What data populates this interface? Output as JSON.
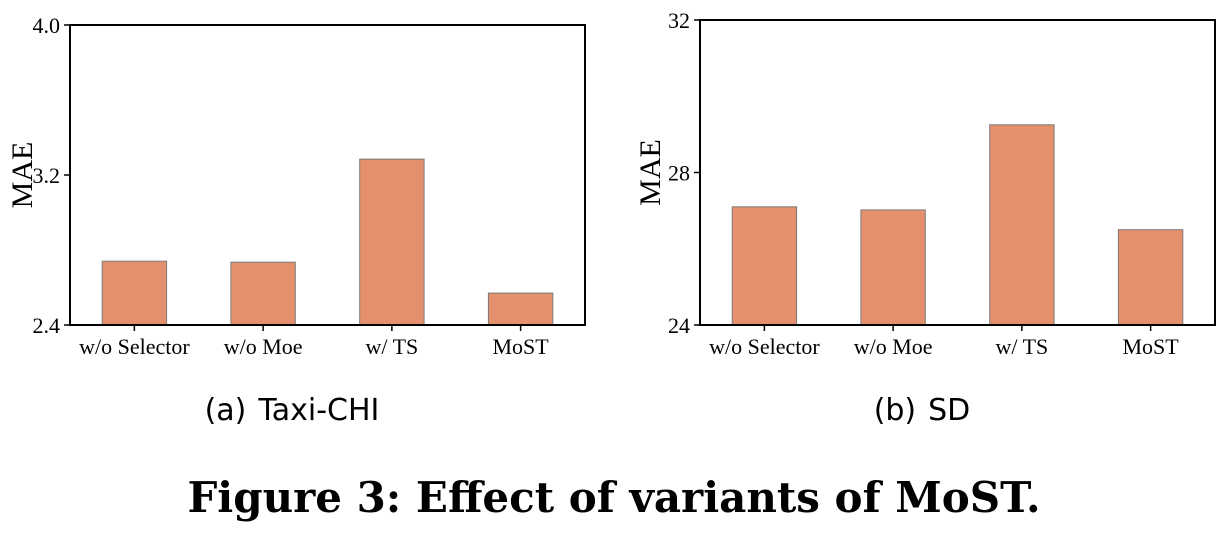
{
  "chart_data": [
    {
      "type": "bar",
      "subcaption_label": "(a)",
      "subcaption_name": "Taxi-CHI",
      "categories": [
        "w/o Selector",
        "w/o Moe",
        "w/ TS",
        "MoST"
      ],
      "values": [
        2.74,
        2.735,
        3.285,
        2.57
      ],
      "ylabel": "MAE",
      "ylim": [
        2.4,
        4.0
      ],
      "yticks": [
        "2.4",
        "3.2",
        "4.0"
      ],
      "grid": false,
      "bar_color": "#e5906c",
      "bar_edge_color": "#7a7a7a"
    },
    {
      "type": "bar",
      "subcaption_label": "(b)",
      "subcaption_name": "SD",
      "categories": [
        "w/o Selector",
        "w/o Moe",
        "w/ TS",
        "MoST"
      ],
      "values": [
        27.1,
        27.02,
        29.25,
        26.5
      ],
      "ylabel": "MAE",
      "ylim": [
        24,
        32
      ],
      "yticks": [
        "24",
        "28",
        "32"
      ],
      "grid": false,
      "bar_color": "#e5906c",
      "bar_edge_color": "#7a7a7a"
    }
  ],
  "figure_caption": "Figure 3: Effect of variants of MoST."
}
